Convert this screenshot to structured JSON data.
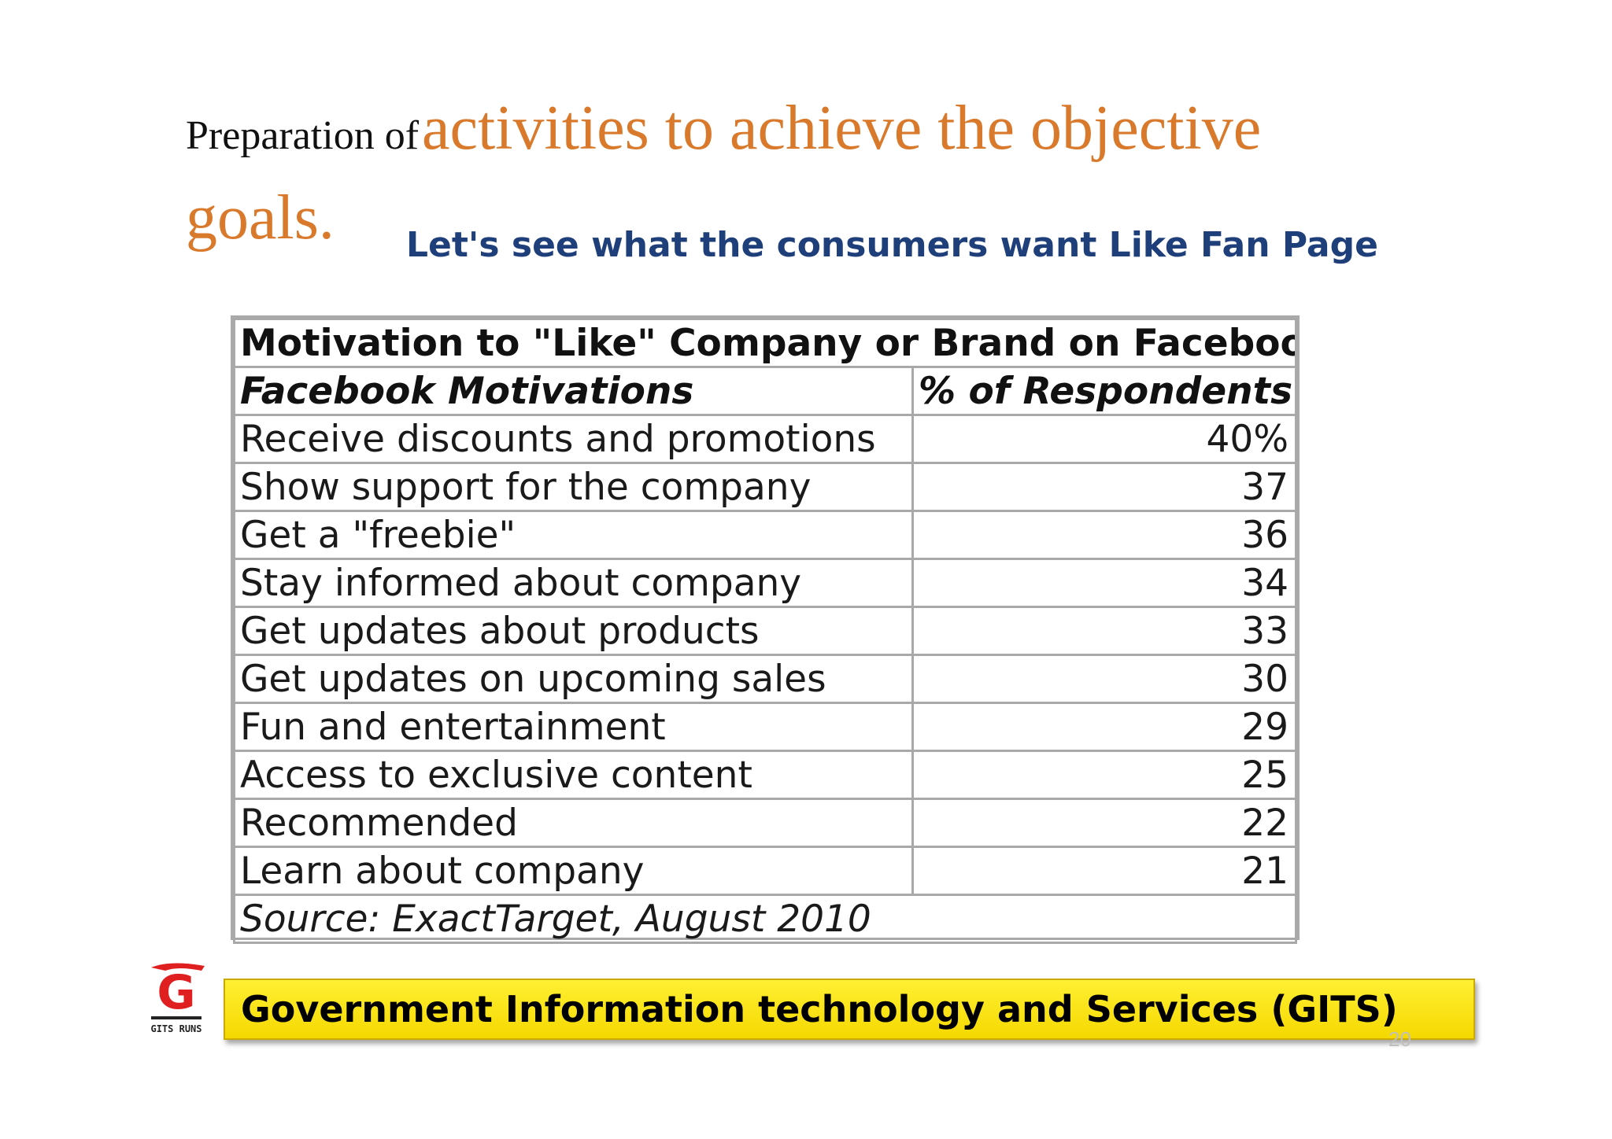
{
  "title": {
    "prefix": "Preparation of",
    "highlight_line1": "activities to achieve the objective",
    "highlight_line2": "goals."
  },
  "subtitle": "Let's see what the consumers want Like Fan Page",
  "table": {
    "caption": "Motivation to \"Like\" Company or Brand on Facebook",
    "headers": [
      "Facebook Motivations",
      "% of Respondents"
    ],
    "rows": [
      {
        "label": "Receive discounts and promotions",
        "value": "40%"
      },
      {
        "label": "Show support for the company",
        "value": "37"
      },
      {
        "label": "Get a \"freebie\"",
        "value": "36"
      },
      {
        "label": "Stay informed about company",
        "value": "34"
      },
      {
        "label": "Get updates about products",
        "value": "33"
      },
      {
        "label": "Get updates on upcoming sales",
        "value": "30"
      },
      {
        "label": "Fun and entertainment",
        "value": "29"
      },
      {
        "label": "Access to exclusive content",
        "value": "25"
      },
      {
        "label": "Recommended",
        "value": "22"
      },
      {
        "label": "Learn about company",
        "value": "21"
      }
    ],
    "source": "Source: ExactTarget, August 2010"
  },
  "footer": {
    "text": "Government Information technology and Services (GITS)",
    "logo_letter": "G",
    "logo_label": "GITS RUNS"
  },
  "page_number": "20",
  "colors": {
    "title_accent": "#d9792b",
    "subtitle": "#1f3f7a",
    "footer_bar": "#f5d800",
    "logo_red": "#e02020"
  }
}
